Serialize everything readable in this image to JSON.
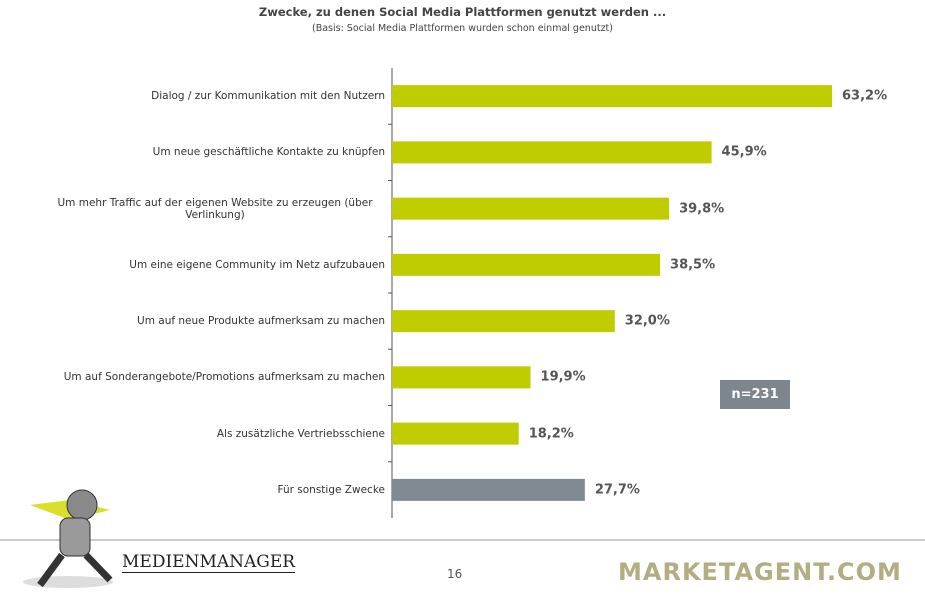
{
  "chart_data": {
    "type": "bar",
    "orientation": "horizontal",
    "title": "Zwecke, zu denen Social Media Plattformen genutzt werden ...",
    "subtitle": "(Basis: Social Media Plattformen wurden schon einmal genutzt)",
    "categories": [
      "Dialog / zur Kommunikation mit den Nutzern",
      "Um neue geschäftliche Kontakte zu knüpfen",
      "Um mehr Traffic auf der eigenen Website zu erzeugen (über Verlinkung)",
      "Um eine eigene Community im Netz aufzubauen",
      "Um auf neue Produkte aufmerksam zu machen",
      "Um auf Sonderangebote/Promotions aufmerksam zu machen",
      "Als zusätzliche Vertriebsschiene",
      "Für sonstige Zwecke"
    ],
    "values": [
      63.2,
      45.9,
      39.8,
      38.5,
      32.0,
      19.9,
      18.2,
      27.7
    ],
    "value_labels": [
      "63,2%",
      "45,9%",
      "39,8%",
      "38,5%",
      "32,0%",
      "19,9%",
      "18,2%",
      "27,7%"
    ],
    "colors": [
      "#bfcc00",
      "#bfcc00",
      "#bfcc00",
      "#bfcc00",
      "#bfcc00",
      "#bfcc00",
      "#bfcc00",
      "#808a93"
    ],
    "annotation": "n=231"
  },
  "footer": {
    "logo_left": "MEDIENMANAGER",
    "page": "16",
    "logo_right": "MARKETAGENT.COM"
  }
}
